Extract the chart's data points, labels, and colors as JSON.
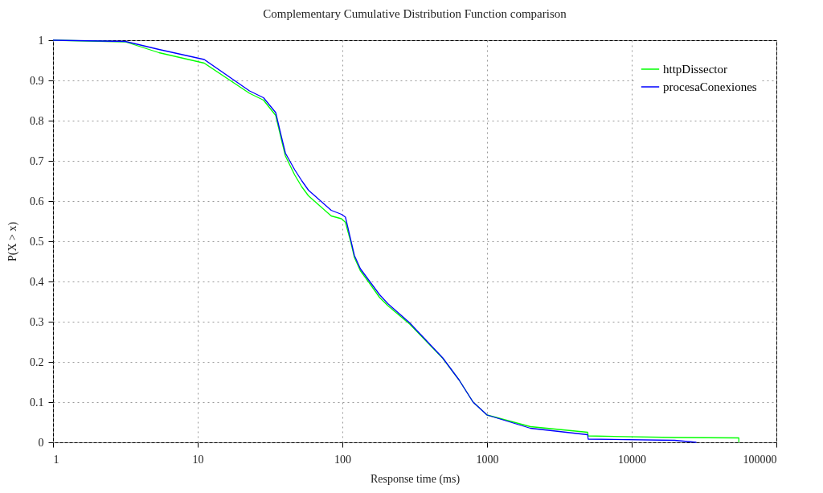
{
  "chart_data": {
    "type": "line",
    "title": "Complementary Cumulative Distribution Function comparison",
    "xlabel": "Response time (ms)",
    "ylabel": "P(X > x)",
    "log": "x",
    "xlim": [
      1,
      100000
    ],
    "xticks": [
      1,
      10,
      100,
      1000,
      10000,
      100000
    ],
    "ylim": [
      0,
      1
    ],
    "yticks": [
      0,
      0.1,
      0.2,
      0.3,
      0.4,
      0.5,
      0.6,
      0.7,
      0.8,
      0.9,
      1
    ],
    "grid": true,
    "legend": "top right",
    "marker": "none",
    "line_style": "solid",
    "series": [
      {
        "name": "httpDissector",
        "color": "#00ff00",
        "x": [
          1,
          3.16,
          5.4,
          11.1,
          22.8,
          28.5,
          34.6,
          37.9,
          40.4,
          46.8,
          52.5,
          58.3,
          83.7,
          98.6,
          105,
          114,
          121,
          133,
          151,
          181,
          206,
          292,
          494,
          641,
          801,
          1000,
          1995,
          4960,
          5000,
          19800,
          55000,
          55000
        ],
        "values": [
          1,
          0.996,
          0.969,
          0.943,
          0.868,
          0.851,
          0.813,
          0.753,
          0.712,
          0.665,
          0.635,
          0.613,
          0.563,
          0.556,
          0.547,
          0.5,
          0.46,
          0.427,
          0.4,
          0.36,
          0.34,
          0.294,
          0.209,
          0.155,
          0.1,
          0.068,
          0.039,
          0.025,
          0.016,
          0.012,
          0.011,
          0
        ]
      },
      {
        "name": "procesaConexiones",
        "color": "#0000ff",
        "x": [
          1,
          3.16,
          5.4,
          11.1,
          22.8,
          28.5,
          34.6,
          37.9,
          40.4,
          46.8,
          52.5,
          58.3,
          83.7,
          98.6,
          105,
          114,
          121,
          133,
          151,
          181,
          206,
          292,
          494,
          641,
          801,
          1000,
          1995,
          4960,
          5000,
          19800,
          28000
        ],
        "values": [
          1,
          0.997,
          0.977,
          0.952,
          0.874,
          0.857,
          0.82,
          0.76,
          0.719,
          0.678,
          0.65,
          0.627,
          0.577,
          0.567,
          0.56,
          0.505,
          0.465,
          0.432,
          0.405,
          0.367,
          0.345,
          0.297,
          0.21,
          0.155,
          0.1,
          0.068,
          0.035,
          0.019,
          0.008,
          0.005,
          0
        ]
      }
    ]
  }
}
